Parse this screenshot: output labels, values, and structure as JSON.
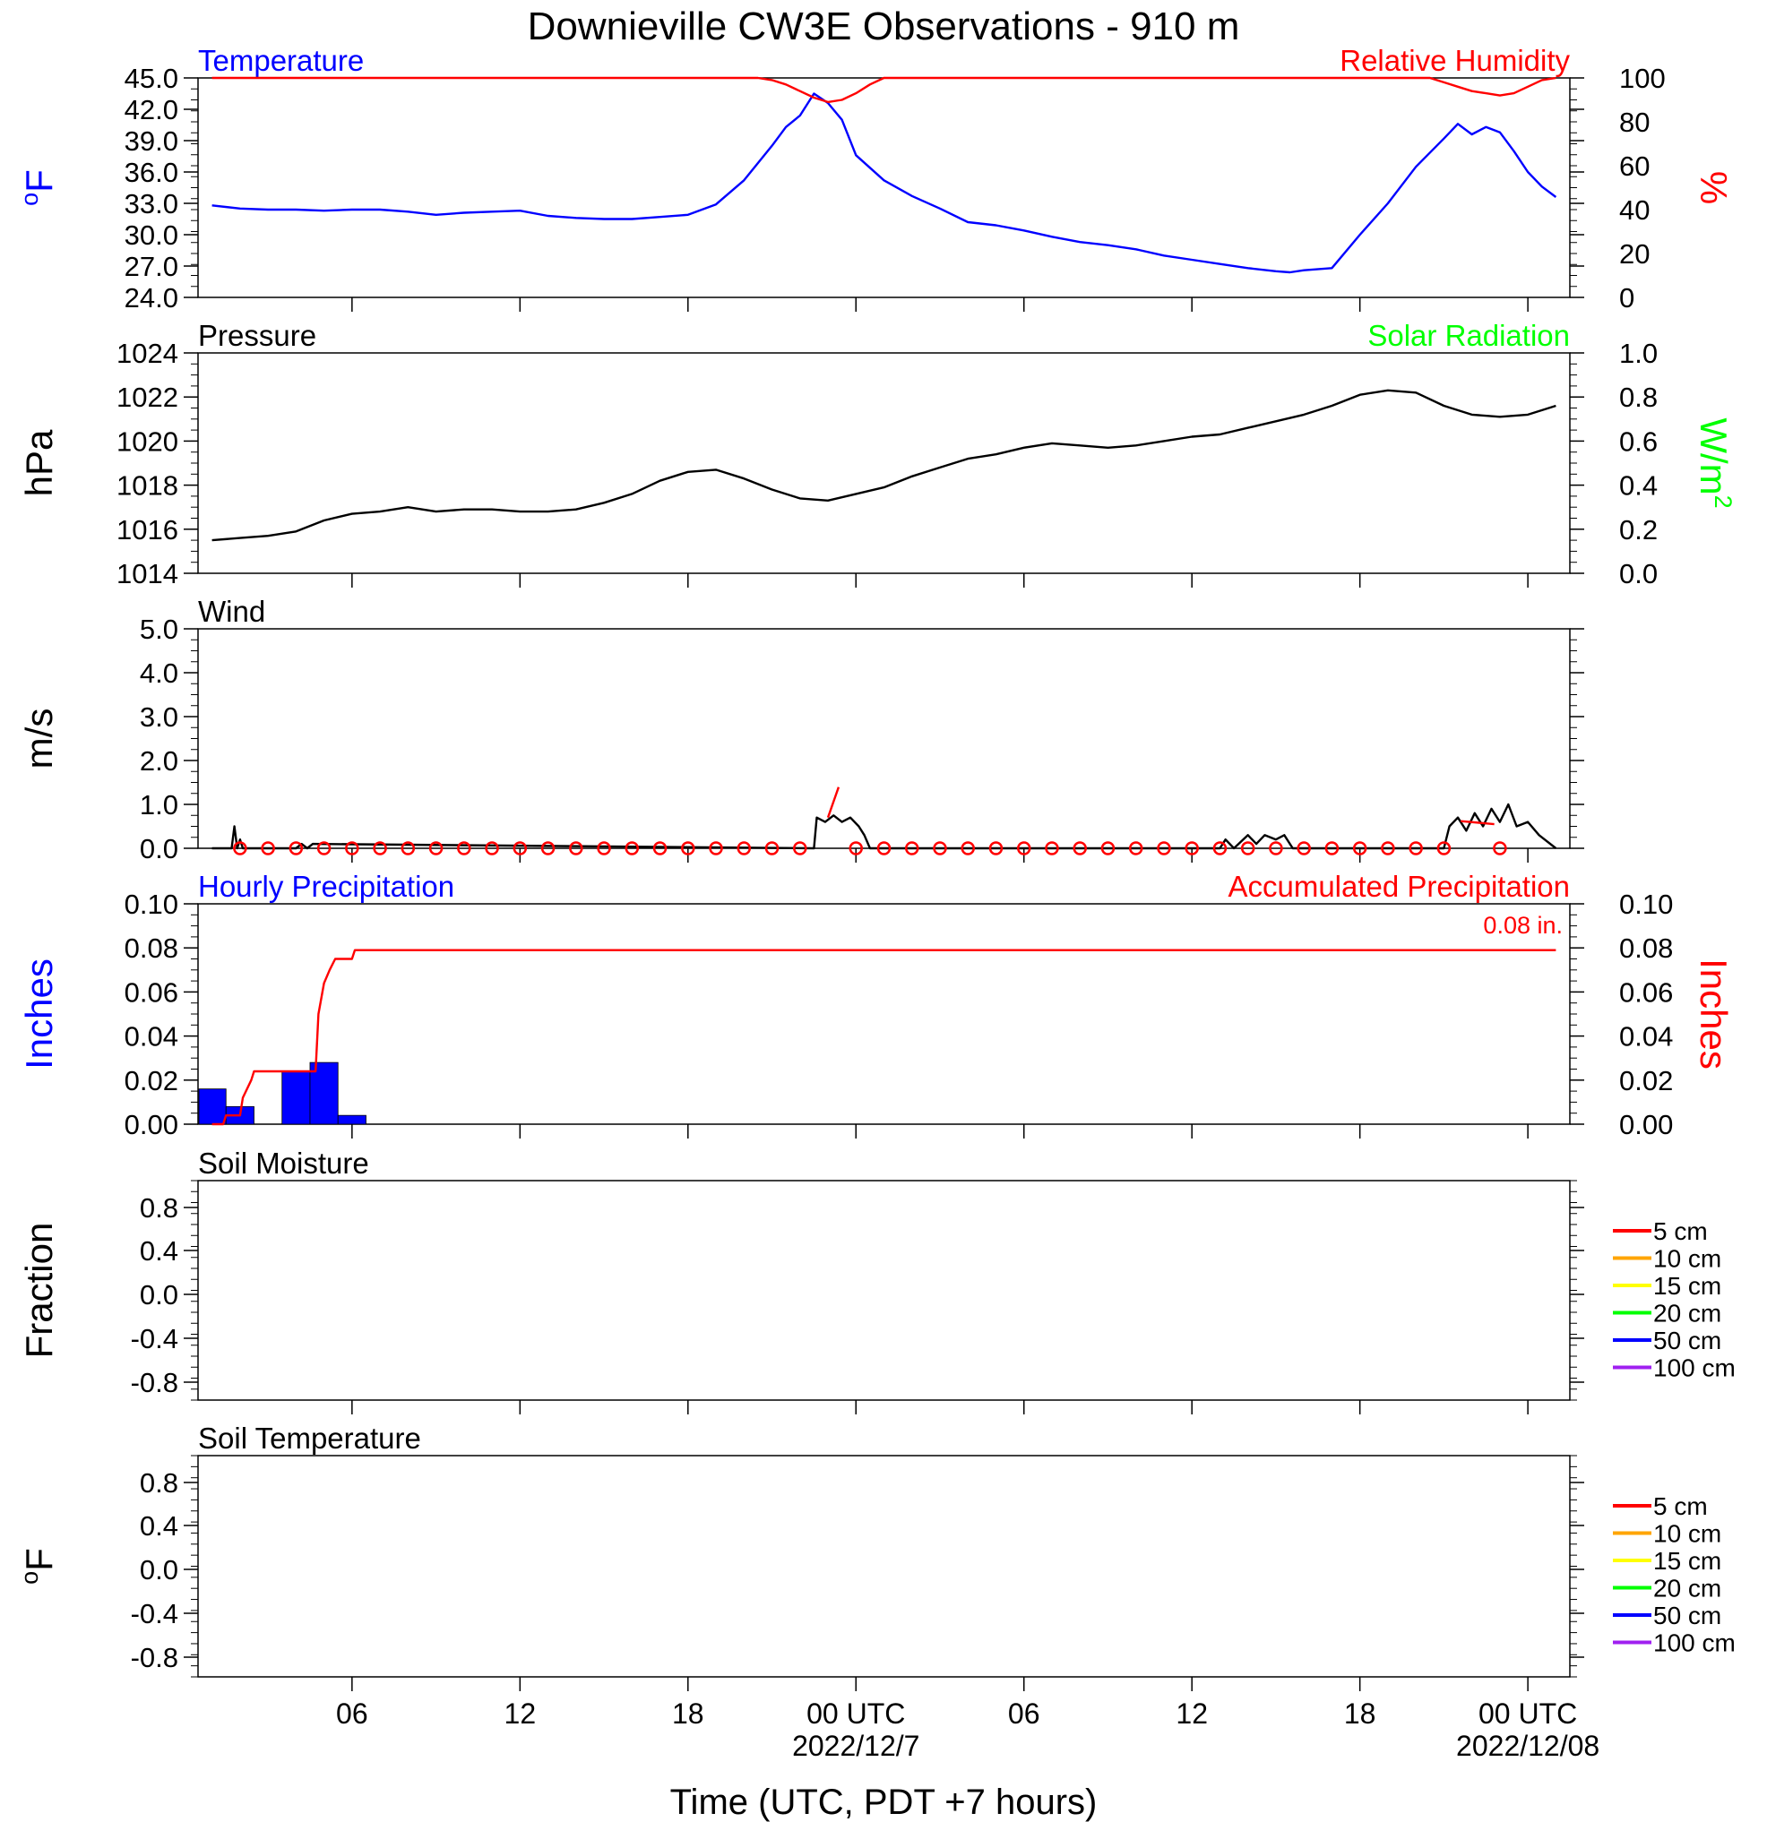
{
  "title": "Downieville CW3E Observations - 910 m",
  "colors": {
    "temperature": "#0000ff",
    "humidity": "#ff0000",
    "pressure": "#000000",
    "solar": "#00ff00",
    "wind": "#000000",
    "wind_marker": "#ff0000",
    "hourly_precip": "#0000ff",
    "accum_precip": "#ff0000"
  },
  "xaxis": {
    "unit": "hours since start of plotted window (UTC)",
    "range": [
      -0.5,
      48.5
    ],
    "ticks": [
      {
        "hour": 5,
        "label": "06"
      },
      {
        "hour": 11,
        "label": "12"
      },
      {
        "hour": 17,
        "label": "18"
      },
      {
        "hour": 23,
        "label": "00 UTC",
        "sublabel": "2022/12/7"
      },
      {
        "hour": 29,
        "label": "06"
      },
      {
        "hour": 35,
        "label": "12"
      },
      {
        "hour": 41,
        "label": "18"
      },
      {
        "hour": 47,
        "label": "00 UTC",
        "sublabel": "2022/12/08"
      }
    ],
    "title": "Time (UTC, PDT +7 hours)"
  },
  "chart_data": [
    {
      "id": "temp_rh",
      "type": "line",
      "left_label": "Temperature",
      "right_label": "Relative Humidity",
      "ylabel_left_sup": "o",
      "ylabel_left": "F",
      "ylabel_right": "%",
      "ylim_left": [
        24,
        45
      ],
      "ylim_right": [
        0,
        100
      ],
      "yticks_left": [
        "45.0",
        "42.0",
        "39.0",
        "36.0",
        "33.0",
        "30.0",
        "27.0",
        "24.0"
      ],
      "yticks_right": [
        "100",
        "80",
        "60",
        "40",
        "20",
        "0"
      ],
      "series": [
        {
          "axis": "left",
          "x": [
            0,
            1,
            2,
            3,
            4,
            5,
            6,
            7,
            8,
            9,
            10,
            11,
            12,
            13,
            14,
            15,
            16,
            17,
            18,
            19,
            20,
            20.5,
            21,
            21.5,
            22,
            22.5,
            23,
            24,
            25,
            26,
            27,
            28,
            29,
            30,
            31,
            32,
            33,
            34,
            35,
            36,
            37,
            38,
            38.5,
            39,
            40,
            41,
            42,
            43,
            44,
            44.5,
            45,
            45.5,
            46,
            46.5,
            47,
            47.5,
            48
          ],
          "y": [
            32.8,
            32.5,
            32.4,
            32.4,
            32.3,
            32.4,
            32.4,
            32.2,
            31.9,
            32.1,
            32.2,
            32.3,
            31.8,
            31.6,
            31.5,
            31.5,
            31.7,
            31.9,
            32.9,
            35.2,
            38.5,
            40.3,
            41.4,
            43.5,
            42.6,
            41.0,
            37.6,
            35.2,
            33.7,
            32.5,
            31.2,
            30.9,
            30.4,
            29.8,
            29.3,
            29.0,
            28.6,
            28.0,
            27.6,
            27.2,
            26.8,
            26.5,
            26.4,
            26.6,
            26.8,
            30.0,
            33.0,
            36.5,
            39.2,
            40.6,
            39.6,
            40.3,
            39.8,
            38.0,
            36.0,
            34.6,
            33.6
          ]
        },
        {
          "axis": "right",
          "x": [
            0,
            19.5,
            20,
            20.5,
            21,
            21.5,
            22,
            22.5,
            23,
            23.5,
            24,
            43.5,
            44,
            44.5,
            45,
            45.5,
            46,
            46.5,
            47,
            47.5,
            48
          ],
          "y": [
            100,
            100,
            99,
            97,
            94,
            91,
            89,
            90,
            93,
            97,
            100,
            100,
            98,
            96,
            94,
            93,
            92,
            93,
            96,
            99,
            100
          ]
        }
      ]
    },
    {
      "id": "pressure_solar",
      "type": "line",
      "left_label": "Pressure",
      "right_label": "Solar Radiation",
      "ylabel_left": "hPa",
      "ylabel_right": "W/m",
      "ylabel_right_sup": "2",
      "ylim_left": [
        1014,
        1024
      ],
      "ylim_right": [
        0,
        1
      ],
      "yticks_left": [
        "1024",
        "1022",
        "1020",
        "1018",
        "1016",
        "1014"
      ],
      "yticks_right": [
        "1.0",
        "0.8",
        "0.6",
        "0.4",
        "0.2",
        "0.0"
      ],
      "series": [
        {
          "axis": "left",
          "x": [
            0,
            1,
            2,
            3,
            4,
            5,
            6,
            7,
            8,
            9,
            10,
            11,
            12,
            13,
            14,
            15,
            16,
            17,
            18,
            19,
            20,
            21,
            22,
            23,
            24,
            25,
            26,
            27,
            28,
            29,
            30,
            31,
            32,
            33,
            34,
            35,
            36,
            37,
            38,
            39,
            40,
            41,
            42,
            43,
            44,
            45,
            46,
            47,
            48
          ],
          "y": [
            1015.5,
            1015.6,
            1015.7,
            1015.9,
            1016.4,
            1016.7,
            1016.8,
            1017.0,
            1016.8,
            1016.9,
            1016.9,
            1016.8,
            1016.8,
            1016.9,
            1017.2,
            1017.6,
            1018.2,
            1018.6,
            1018.7,
            1018.3,
            1017.8,
            1017.4,
            1017.3,
            1017.6,
            1017.9,
            1018.4,
            1018.8,
            1019.2,
            1019.4,
            1019.7,
            1019.9,
            1019.8,
            1019.7,
            1019.8,
            1020.0,
            1020.2,
            1020.3,
            1020.6,
            1020.9,
            1021.2,
            1021.6,
            1022.1,
            1022.3,
            1022.2,
            1021.6,
            1021.2,
            1021.1,
            1021.2,
            1021.6
          ]
        }
      ]
    },
    {
      "id": "wind",
      "type": "line",
      "left_label": "Wind",
      "ylabel_left": "m/s",
      "ylim_left": [
        0,
        5
      ],
      "yticks_left": [
        "5.0",
        "4.0",
        "3.0",
        "2.0",
        "1.0",
        "0.0"
      ],
      "series": [
        {
          "axis": "left",
          "x": [
            0,
            0.7,
            0.8,
            0.9,
            1.0,
            1.1,
            3,
            3.2,
            3.4,
            3.6,
            21.5,
            21.6,
            21.9,
            22.2,
            22.5,
            22.8,
            23.1,
            23.3,
            23.5,
            36,
            36.2,
            36.5,
            37,
            37.3,
            37.6,
            38,
            38.3,
            38.6,
            44,
            44.2,
            44.5,
            44.8,
            45.1,
            45.4,
            45.7,
            46,
            46.3,
            46.6,
            47,
            47.4,
            48
          ],
          "y": [
            0,
            0,
            0.5,
            0,
            0.2,
            0,
            0,
            0.1,
            0,
            0.1,
            0,
            0.7,
            0.6,
            0.75,
            0.6,
            0.7,
            0.5,
            0.3,
            0,
            0,
            0.2,
            0,
            0.3,
            0.1,
            0.3,
            0.2,
            0.3,
            0,
            0,
            0.5,
            0.7,
            0.4,
            0.8,
            0.5,
            0.9,
            0.6,
            1.0,
            0.5,
            0.6,
            0.3,
            0
          ]
        }
      ],
      "markers": {
        "calm_hours": [
          1,
          2,
          3,
          4,
          5,
          6,
          7,
          8,
          9,
          10,
          11,
          12,
          13,
          14,
          15,
          16,
          17,
          18,
          19,
          20,
          21,
          23,
          24,
          25,
          26,
          27,
          28,
          29,
          30,
          31,
          32,
          33,
          34,
          35,
          36,
          37,
          38,
          39,
          40,
          41,
          42,
          43,
          44,
          46
        ],
        "calm_value": 0
      },
      "vectors": [
        {
          "hour": 22.0,
          "speed": 0.7,
          "dx": 0.35,
          "dy": 1.0
        },
        {
          "hour": 45.8,
          "speed": 0.55,
          "dx": -1.1,
          "dy": 0.1
        }
      ]
    },
    {
      "id": "precip",
      "type": "bar",
      "left_label": "Hourly Precipitation",
      "right_label": "Accumulated Precipitation",
      "total_label": "0.08 in.",
      "ylabel_left": "Inches",
      "ylabel_right": "Inches",
      "ylim_left": [
        0,
        0.1
      ],
      "ylim_right": [
        0,
        0.1
      ],
      "yticks_left": [
        "0.10",
        "0.08",
        "0.06",
        "0.04",
        "0.02",
        "0.00"
      ],
      "yticks_right": [
        "0.10",
        "0.08",
        "0.06",
        "0.04",
        "0.02",
        "0.00"
      ],
      "bars": {
        "x": [
          0,
          1,
          3,
          4,
          5
        ],
        "values": [
          0.016,
          0.008,
          0.024,
          0.028,
          0.004
        ]
      },
      "series": [
        {
          "axis": "right",
          "x": [
            0,
            0.4,
            0.5,
            1,
            1.1,
            1.4,
            1.5,
            3.5,
            3.7,
            3.8,
            4,
            4.2,
            4.4,
            4.5,
            4.6,
            5,
            5.1,
            5.3,
            48
          ],
          "y": [
            0,
            0,
            0.004,
            0.004,
            0.012,
            0.02,
            0.024,
            0.024,
            0.024,
            0.05,
            0.064,
            0.07,
            0.075,
            0.075,
            0.075,
            0.075,
            0.079,
            0.079,
            0.079
          ]
        }
      ]
    },
    {
      "id": "soil_moisture",
      "type": "line",
      "left_label": "Soil Moisture",
      "ylabel_left": "Fraction",
      "ylim_left": [
        -1,
        1
      ],
      "yticks_left": [
        "0.8",
        "0.4",
        "0.0",
        "-0.4",
        "-0.8"
      ],
      "legend": [
        {
          "label": "5 cm",
          "color": "#ff0000"
        },
        {
          "label": "10 cm",
          "color": "#ffa500"
        },
        {
          "label": "15 cm",
          "color": "#ffff00"
        },
        {
          "label": "20 cm",
          "color": "#00ff00"
        },
        {
          "label": "50 cm",
          "color": "#0000ff"
        },
        {
          "label": "100 cm",
          "color": "#a020f0"
        }
      ]
    },
    {
      "id": "soil_temperature",
      "type": "line",
      "left_label": "Soil Temperature",
      "ylabel_left_sup": "o",
      "ylabel_left": "F",
      "ylim_left": [
        -1,
        1
      ],
      "yticks_left": [
        "0.8",
        "0.4",
        "0.0",
        "-0.4",
        "-0.8"
      ],
      "legend": [
        {
          "label": "5 cm",
          "color": "#ff0000"
        },
        {
          "label": "10 cm",
          "color": "#ffa500"
        },
        {
          "label": "15 cm",
          "color": "#ffff00"
        },
        {
          "label": "20 cm",
          "color": "#00ff00"
        },
        {
          "label": "50 cm",
          "color": "#0000ff"
        },
        {
          "label": "100 cm",
          "color": "#a020f0"
        }
      ]
    }
  ]
}
